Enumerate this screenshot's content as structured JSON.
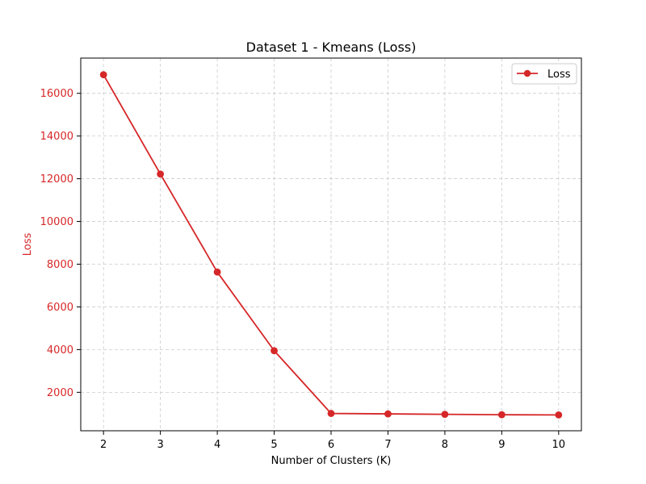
{
  "chart_data": {
    "type": "line",
    "title": "Dataset 1 - Kmeans (Loss)",
    "xlabel": "Number of Clusters (K)",
    "ylabel": "Loss",
    "x": [
      2,
      3,
      4,
      5,
      6,
      7,
      8,
      9,
      10
    ],
    "xticks": [
      2,
      3,
      4,
      5,
      6,
      7,
      8,
      9,
      10
    ],
    "yticks": [
      2000,
      4000,
      6000,
      8000,
      10000,
      12000,
      14000,
      16000
    ],
    "xlim": [
      1.6,
      10.4
    ],
    "ylim": [
      200,
      17650
    ],
    "grid": true,
    "legend_position": "top-right",
    "series": [
      {
        "name": "Loss",
        "color": "#d62728",
        "marker": "circle",
        "values": [
          16870,
          12220,
          7630,
          3950,
          1010,
          990,
          970,
          950,
          940
        ]
      }
    ]
  },
  "colors": {
    "series": "#d62728",
    "ylabel": "#d62728",
    "ytick_labels": "#d62728",
    "grid": "#cccccc",
    "axes": "#000000"
  }
}
